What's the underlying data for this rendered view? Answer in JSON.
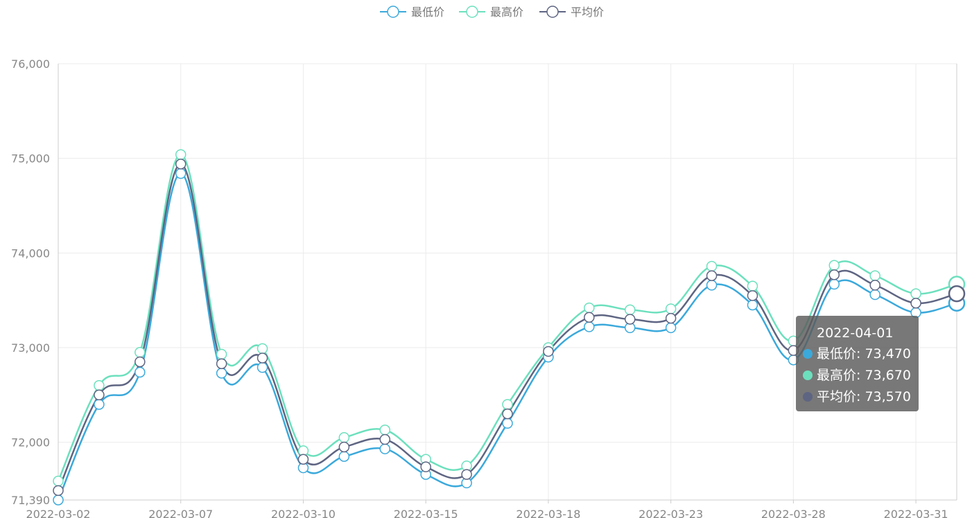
{
  "chart_data": {
    "type": "line",
    "smooth": true,
    "categories": [
      "2022-03-02",
      "2022-03-03",
      "2022-03-04",
      "2022-03-07",
      "2022-03-08",
      "2022-03-09",
      "2022-03-10",
      "2022-03-11",
      "2022-03-14",
      "2022-03-15",
      "2022-03-16",
      "2022-03-17",
      "2022-03-18",
      "2022-03-21",
      "2022-03-22",
      "2022-03-23",
      "2022-03-24",
      "2022-03-25",
      "2022-03-28",
      "2022-03-29",
      "2022-03-30",
      "2022-03-31",
      "2022-04-01"
    ],
    "x_tick_labels": [
      "2022-03-02",
      "2022-03-07",
      "2022-03-10",
      "2022-03-15",
      "2022-03-18",
      "2022-03-23",
      "2022-03-28",
      "2022-03-31"
    ],
    "series": [
      {
        "name": "最低价",
        "color": "#3ba9db",
        "values": [
          71390,
          72400,
          72740,
          74840,
          72730,
          72790,
          71730,
          71850,
          71930,
          71660,
          71570,
          72200,
          72900,
          73220,
          73210,
          73210,
          73660,
          73450,
          72870,
          73670,
          73560,
          73370,
          73470
        ]
      },
      {
        "name": "最高价",
        "color": "#6ce0bd",
        "values": [
          71590,
          72600,
          72950,
          75040,
          72930,
          72990,
          71910,
          72050,
          72130,
          71820,
          71750,
          72400,
          73000,
          73420,
          73400,
          73410,
          73860,
          73650,
          73070,
          73870,
          73760,
          73570,
          73670
        ]
      },
      {
        "name": "平均价",
        "color": "#5e6582",
        "values": [
          71490,
          72500,
          72850,
          74940,
          72830,
          72890,
          71820,
          71950,
          72030,
          71740,
          71660,
          72300,
          72960,
          73320,
          73300,
          73310,
          73760,
          73550,
          72970,
          73770,
          73660,
          73470,
          73570
        ]
      }
    ],
    "ylim": [
      71390,
      76000
    ],
    "y_ticks": [
      71390,
      72000,
      73000,
      74000,
      75000,
      76000
    ],
    "y_tick_labels": [
      "71,390",
      "72,000",
      "73,000",
      "74,000",
      "75,000",
      "76,000"
    ],
    "grid": true,
    "legend_position": "top-center",
    "xlabel": "",
    "ylabel": "",
    "title": ""
  },
  "tooltip": {
    "title": "2022-04-01",
    "rows": [
      {
        "label": "最低价",
        "value": "73,470",
        "color": "#3ba9db"
      },
      {
        "label": "最高价",
        "value": "73,670",
        "color": "#6ce0bd"
      },
      {
        "label": "平均价",
        "value": "73,570",
        "color": "#5e6582"
      }
    ]
  }
}
